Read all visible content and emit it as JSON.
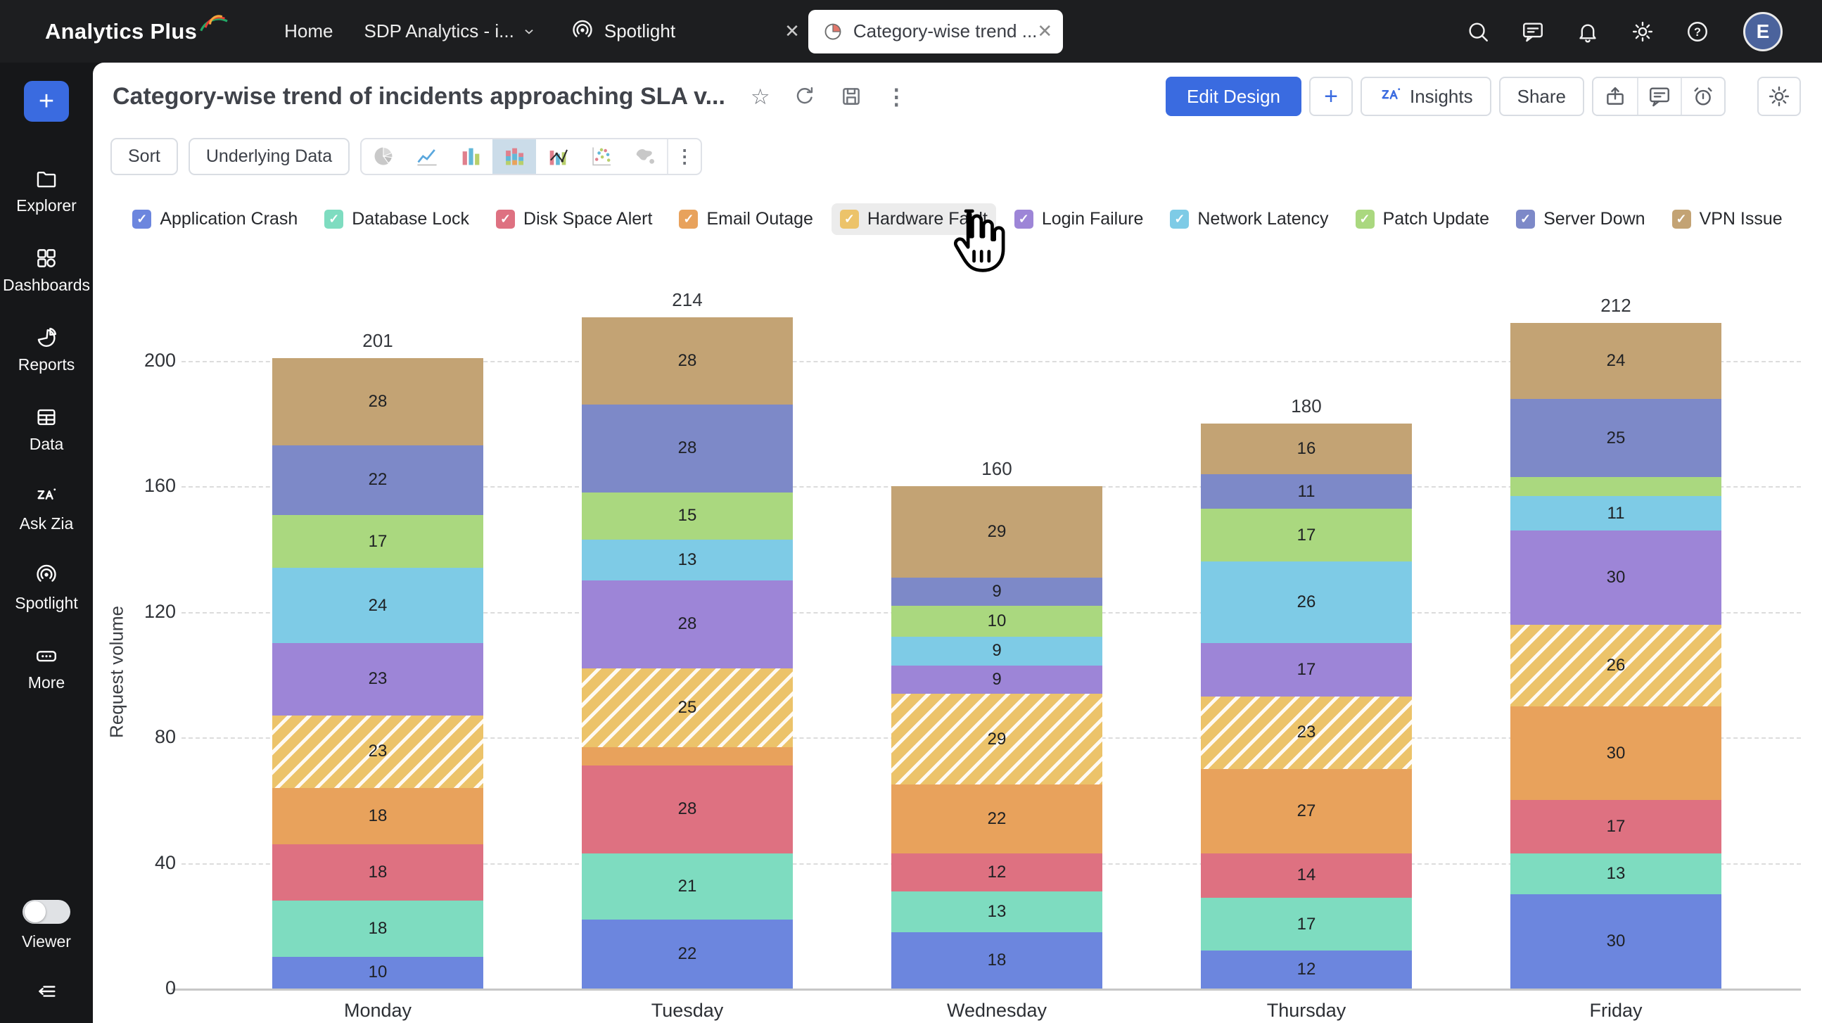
{
  "app": {
    "logo": "Analytics Plus"
  },
  "topbar": {
    "nav": [
      {
        "label": "Home",
        "icon": null
      },
      {
        "label": "SDP Analytics - i...",
        "icon": "chevron-down"
      }
    ],
    "tabs": [
      {
        "label": "Spotlight",
        "icon": "spotlight",
        "active": false,
        "closable": true
      },
      {
        "label": "Category-wise trend ...",
        "icon": "pie-tab",
        "active": true,
        "closable": true
      }
    ],
    "right_icons": [
      "search",
      "comment",
      "bell",
      "gear",
      "help"
    ],
    "avatar": "E"
  },
  "sidebar": {
    "plus_label": "+",
    "items": [
      {
        "label": "Explorer",
        "icon": "folder"
      },
      {
        "label": "Dashboards",
        "icon": "grid"
      },
      {
        "label": "Reports",
        "icon": "pie"
      },
      {
        "label": "Data",
        "icon": "table"
      },
      {
        "label": "Ask Zia",
        "icon": "zia"
      },
      {
        "label": "Spotlight",
        "icon": "spotlight"
      },
      {
        "label": "More",
        "icon": "more"
      }
    ],
    "viewer_toggle": {
      "label": "Viewer",
      "state": "off"
    },
    "collapse_icon": "collapse"
  },
  "report": {
    "title": "Category-wise trend of incidents approaching SLA v...",
    "title_icons": [
      "star",
      "refresh",
      "save",
      "kebab"
    ],
    "actions": {
      "edit_design": "Edit Design",
      "add": "+",
      "insights": "Insights",
      "share": "Share",
      "icon_group": [
        "export",
        "comment",
        "alarm"
      ],
      "settings_icon": "gear"
    },
    "toolbar": {
      "sort": "Sort",
      "underlying_data": "Underlying Data",
      "chart_type_icons": [
        "pie",
        "line",
        "bar",
        "stacked-bar",
        "combo",
        "scatter",
        "map"
      ],
      "selected_chart_type": "stacked-bar",
      "overflow_icon": "kebab"
    }
  },
  "chart_data": {
    "type": "bar",
    "stacked": true,
    "categories": [
      "Monday",
      "Tuesday",
      "Wednesday",
      "Thursday",
      "Friday"
    ],
    "series": [
      {
        "name": "Application Crash",
        "color": "#6c86de",
        "values": [
          10,
          22,
          18,
          12,
          30
        ]
      },
      {
        "name": "Database Lock",
        "color": "#7edcc0",
        "values": [
          18,
          21,
          13,
          17,
          13
        ]
      },
      {
        "name": "Disk Space Alert",
        "color": "#de7181",
        "values": [
          18,
          28,
          12,
          14,
          17
        ]
      },
      {
        "name": "Email Outage",
        "color": "#e8a25c",
        "values": [
          18,
          6,
          22,
          27,
          30
        ]
      },
      {
        "name": "Hardware Fault",
        "color": "#ecc36a",
        "hatched": true,
        "values": [
          23,
          25,
          29,
          23,
          26
        ]
      },
      {
        "name": "Login Failure",
        "color": "#9d85d7",
        "values": [
          23,
          28,
          9,
          17,
          30
        ]
      },
      {
        "name": "Network Latency",
        "color": "#7ecbe6",
        "values": [
          24,
          13,
          9,
          26,
          11
        ]
      },
      {
        "name": "Patch Update",
        "color": "#aad87f",
        "values": [
          17,
          15,
          10,
          17,
          6
        ]
      },
      {
        "name": "Server Down",
        "color": "#7d89c8",
        "values": [
          22,
          28,
          9,
          11,
          25
        ]
      },
      {
        "name": "VPN Issue",
        "color": "#c3a374",
        "values": [
          28,
          28,
          29,
          16,
          24
        ]
      }
    ],
    "totals": [
      201,
      214,
      160,
      180,
      212
    ],
    "ylabel": "Request volume",
    "xlabel": "",
    "yticks": [
      0,
      40,
      80,
      120,
      160,
      200
    ],
    "ylim": [
      0,
      220
    ],
    "grid": "dashed-horizontal",
    "legend_position": "top",
    "legend_hovered_item": "Hardware Fault",
    "data_label_min_value": 8
  }
}
